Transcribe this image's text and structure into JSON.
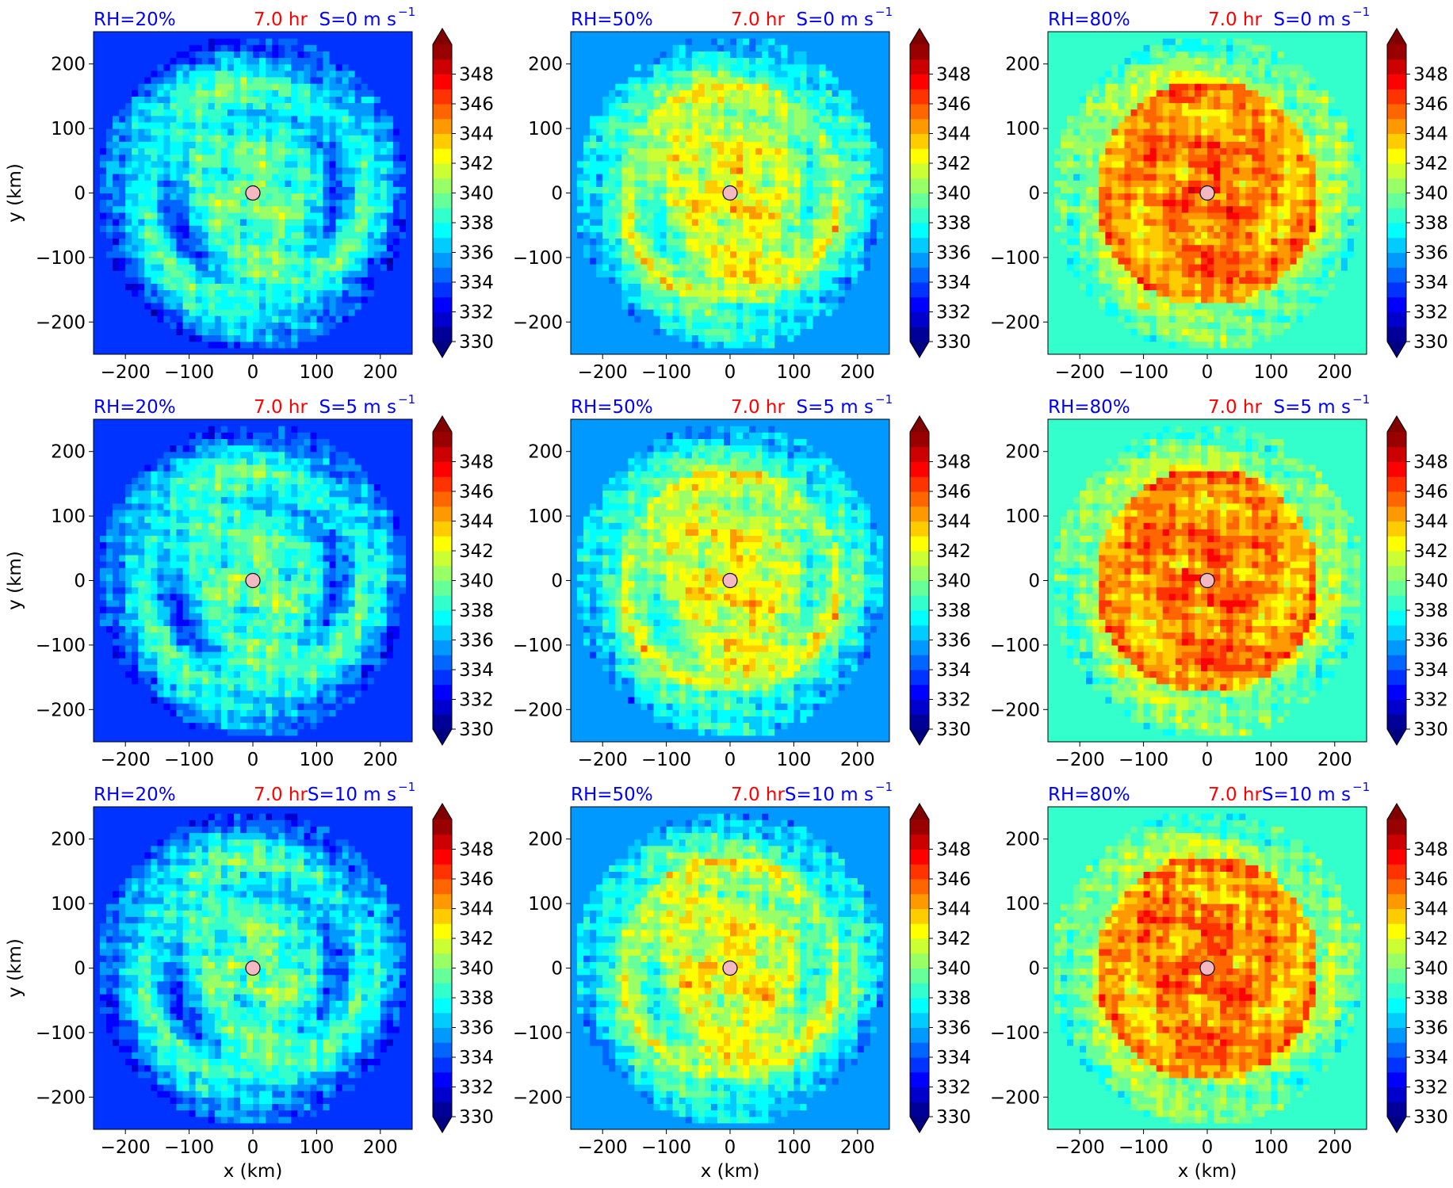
{
  "chart_data": {
    "type": "heatmap",
    "time_label": "7.0 hr",
    "xlabel": "x (km)",
    "ylabel": "y (km)",
    "xlim": [
      -250,
      250
    ],
    "ylim": [
      -250,
      250
    ],
    "xticks": [
      -200,
      -100,
      0,
      100,
      200
    ],
    "yticks": [
      -200,
      -100,
      0,
      100,
      200
    ],
    "tick_labels": [
      "−200",
      "−100",
      "0",
      "100",
      "200"
    ],
    "colorbar": {
      "min": 330,
      "max": 350,
      "step": 1,
      "tick_values": [
        330,
        332,
        334,
        336,
        338,
        340,
        342,
        344,
        346,
        348
      ],
      "extend": "both",
      "colormap": "jet"
    },
    "rows": [
      {
        "shear_label": "S=0 m s",
        "shear_exp": "−1"
      },
      {
        "shear_label": "S=5 m s",
        "shear_exp": "−1"
      },
      {
        "shear_label": "S=10 m s",
        "shear_exp": "−1"
      }
    ],
    "columns": [
      {
        "rh_label": "RH=20%",
        "background": 333.2,
        "outer_ring": 338.5,
        "core": 339.6,
        "trough": 333.8
      },
      {
        "rh_label": "RH=50%",
        "background": 335.6,
        "outer_ring": 339.6,
        "core": 342.6,
        "trough": 338.0
      },
      {
        "rh_label": "RH=80%",
        "background": 338.6,
        "outer_ring": 341.0,
        "core": 345.6,
        "trough": 343.6
      }
    ],
    "center_marker": {
      "x": 0,
      "y": 0,
      "color": "#f4b8c2"
    },
    "label_colors": {
      "rh": "#0000ff",
      "time": "#ff0000",
      "shear": "#0000ff"
    }
  }
}
